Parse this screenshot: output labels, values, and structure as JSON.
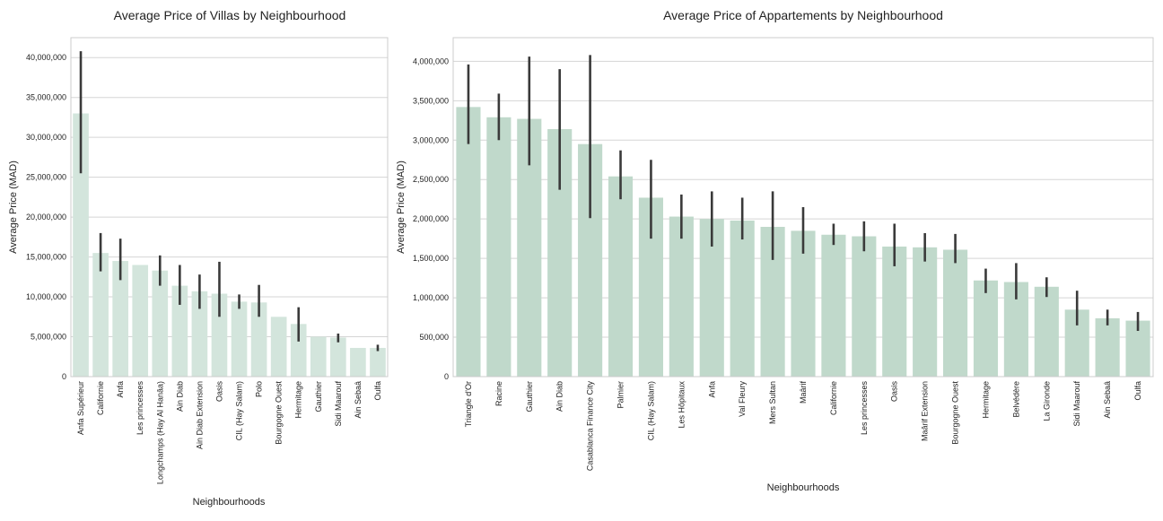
{
  "chart_data": [
    {
      "type": "bar",
      "title": "Average Price of Villas by Neighbourhood",
      "xlabel": "Neighbourhoods",
      "ylabel": "Average Price (MAD)",
      "ylim": [
        0,
        42500000
      ],
      "yticks": [
        0,
        5000000,
        10000000,
        15000000,
        20000000,
        25000000,
        30000000,
        35000000,
        40000000
      ],
      "ytick_labels": [
        "0",
        "5,000,000",
        "10,000,000",
        "15,000,000",
        "20,000,000",
        "25,000,000",
        "30,000,000",
        "35,000,000",
        "40,000,000"
      ],
      "grid": true,
      "bar_color": "#d3e5dc",
      "error_color": "#3a3a3a",
      "categories": [
        "Anfa Supérieur",
        "Californie",
        "Anfa",
        "Les princesses",
        "Longchamps (Hay Al Hanâa)",
        "Ain Diab",
        "Ain Diab Extension",
        "Oasis",
        "CIL (Hay Salam)",
        "Polo",
        "Bourgogne Ouest",
        "Hermitage",
        "Gauthier",
        "Sidi Maarouf",
        "Ain Sebaâ",
        "Oulfa"
      ],
      "values": [
        33000000,
        15500000,
        14500000,
        14000000,
        13300000,
        11400000,
        10700000,
        10400000,
        9400000,
        9300000,
        7500000,
        6600000,
        5000000,
        4900000,
        3600000,
        3600000
      ],
      "error_low": [
        25500000,
        13200000,
        12100000,
        null,
        11400000,
        9000000,
        8500000,
        7500000,
        8500000,
        7500000,
        null,
        4400000,
        null,
        4300000,
        null,
        3200000
      ],
      "error_high": [
        40800000,
        18000000,
        17300000,
        null,
        15200000,
        14000000,
        12800000,
        14400000,
        10300000,
        11500000,
        null,
        8700000,
        null,
        5400000,
        null,
        4000000
      ]
    },
    {
      "type": "bar",
      "title": "Average Price of Appartements by Neighbourhood",
      "xlabel": "Neighbourhoods",
      "ylabel": "Average Price (MAD)",
      "ylim": [
        0,
        4300000
      ],
      "yticks": [
        0,
        500000,
        1000000,
        1500000,
        2000000,
        2500000,
        3000000,
        3500000,
        4000000
      ],
      "ytick_labels": [
        "0",
        "500,000",
        "1,000,000",
        "1,500,000",
        "2,000,000",
        "2,500,000",
        "3,000,000",
        "3,500,000",
        "4,000,000"
      ],
      "grid": true,
      "bar_color": "#c0d9cb",
      "error_color": "#3a3a3a",
      "categories": [
        "Triangle d'Or",
        "Racine",
        "Gauthier",
        "Ain Diab",
        "Casablanca Finance City",
        "Palmier",
        "CIL (Hay Salam)",
        "Les Hôpitaux",
        "Anfa",
        "Val Fleury",
        "Mers Sultan",
        "Maârif",
        "Californie",
        "Les princesses",
        "Oasis",
        "Maârif Extension",
        "Bourgogne Ouest",
        "Hermitage",
        "Belvédère",
        "La Gironde",
        "Sidi Maarouf",
        "Ain Sebaâ",
        "Oulfa"
      ],
      "values": [
        3420000,
        3290000,
        3270000,
        3140000,
        2950000,
        2540000,
        2270000,
        2030000,
        2000000,
        1980000,
        1900000,
        1850000,
        1800000,
        1780000,
        1650000,
        1640000,
        1610000,
        1220000,
        1200000,
        1140000,
        850000,
        740000,
        710000
      ],
      "error_low": [
        2950000,
        3000000,
        2680000,
        2370000,
        2010000,
        2250000,
        1750000,
        1750000,
        1650000,
        1740000,
        1480000,
        1560000,
        1670000,
        1590000,
        1400000,
        1460000,
        1440000,
        1060000,
        980000,
        1010000,
        650000,
        650000,
        580000
      ],
      "error_high": [
        3960000,
        3590000,
        4060000,
        3900000,
        4080000,
        2870000,
        2750000,
        2310000,
        2350000,
        2270000,
        2350000,
        2150000,
        1940000,
        1970000,
        1940000,
        1820000,
        1810000,
        1370000,
        1440000,
        1260000,
        1090000,
        850000,
        820000
      ]
    }
  ]
}
